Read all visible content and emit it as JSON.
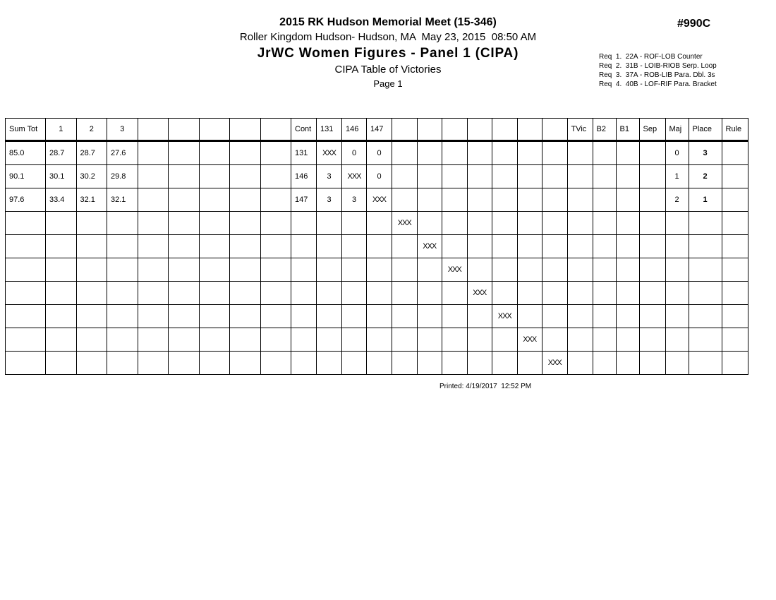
{
  "colors": {
    "ink": "#000000",
    "paper": "#ffffff"
  },
  "header": {
    "meet_title": "2015 RK Hudson Memorial Meet (15-346)",
    "venue_line": "Roller Kingdom Hudson- Hudson, MA  May 23, 2015  08:50 AM",
    "event_title": "JrWC Women Figures - Panel 1 (CIPA)",
    "report_title": "CIPA Table of Victories",
    "page_label": "Page 1",
    "doc_code": "#990C",
    "requirements": [
      "Req  1.  22A - ROF-LOB Counter",
      "Req  2.  31B - LOIB-RIOB Serp. Loop",
      "Req  3.  37A - ROB-LIB Para. Dbl. 3s",
      "Req  4.  40B - LOF-RIF Para. Bracket"
    ]
  },
  "table": {
    "columns": [
      "Sum Tot",
      "1",
      "2",
      "3",
      "",
      "",
      "",
      "",
      "",
      "Cont",
      "131",
      "146",
      "147",
      "",
      "",
      "",
      "",
      "",
      "",
      "",
      "TVic",
      "B2",
      "B1",
      "Sep",
      "Maj",
      "Place",
      "Rule"
    ],
    "rows": [
      [
        "85.0",
        "28.7",
        "28.7",
        "27.6",
        "",
        "",
        "",
        "",
        "",
        "131",
        "XXX",
        "0",
        "0",
        "",
        "",
        "",
        "",
        "",
        "",
        "",
        "",
        "",
        "",
        "",
        "0",
        "3",
        ""
      ],
      [
        "90.1",
        "30.1",
        "30.2",
        "29.8",
        "",
        "",
        "",
        "",
        "",
        "146",
        "3",
        "XXX",
        "0",
        "",
        "",
        "",
        "",
        "",
        "",
        "",
        "",
        "",
        "",
        "",
        "1",
        "2",
        ""
      ],
      [
        "97.6",
        "33.4",
        "32.1",
        "32.1",
        "",
        "",
        "",
        "",
        "",
        "147",
        "3",
        "3",
        "XXX",
        "",
        "",
        "",
        "",
        "",
        "",
        "",
        "",
        "",
        "",
        "",
        "2",
        "1",
        ""
      ],
      [
        "",
        "",
        "",
        "",
        "",
        "",
        "",
        "",
        "",
        "",
        "",
        "",
        "",
        "XXX",
        "",
        "",
        "",
        "",
        "",
        "",
        "",
        "",
        "",
        "",
        "",
        "",
        ""
      ],
      [
        "",
        "",
        "",
        "",
        "",
        "",
        "",
        "",
        "",
        "",
        "",
        "",
        "",
        "",
        "XXX",
        "",
        "",
        "",
        "",
        "",
        "",
        "",
        "",
        "",
        "",
        "",
        ""
      ],
      [
        "",
        "",
        "",
        "",
        "",
        "",
        "",
        "",
        "",
        "",
        "",
        "",
        "",
        "",
        "",
        "XXX",
        "",
        "",
        "",
        "",
        "",
        "",
        "",
        "",
        "",
        "",
        ""
      ],
      [
        "",
        "",
        "",
        "",
        "",
        "",
        "",
        "",
        "",
        "",
        "",
        "",
        "",
        "",
        "",
        "",
        "XXX",
        "",
        "",
        "",
        "",
        "",
        "",
        "",
        "",
        "",
        ""
      ],
      [
        "",
        "",
        "",
        "",
        "",
        "",
        "",
        "",
        "",
        "",
        "",
        "",
        "",
        "",
        "",
        "",
        "",
        "XXX",
        "",
        "",
        "",
        "",
        "",
        "",
        "",
        "",
        ""
      ],
      [
        "",
        "",
        "",
        "",
        "",
        "",
        "",
        "",
        "",
        "",
        "",
        "",
        "",
        "",
        "",
        "",
        "",
        "",
        "XXX",
        "",
        "",
        "",
        "",
        "",
        "",
        "",
        ""
      ],
      [
        "",
        "",
        "",
        "",
        "",
        "",
        "",
        "",
        "",
        "",
        "",
        "",
        "",
        "",
        "",
        "",
        "",
        "",
        "",
        "XXX",
        "",
        "",
        "",
        "",
        "",
        "",
        ""
      ]
    ]
  },
  "footer": {
    "printed": "Printed: 4/19/2017  12:52 PM"
  }
}
